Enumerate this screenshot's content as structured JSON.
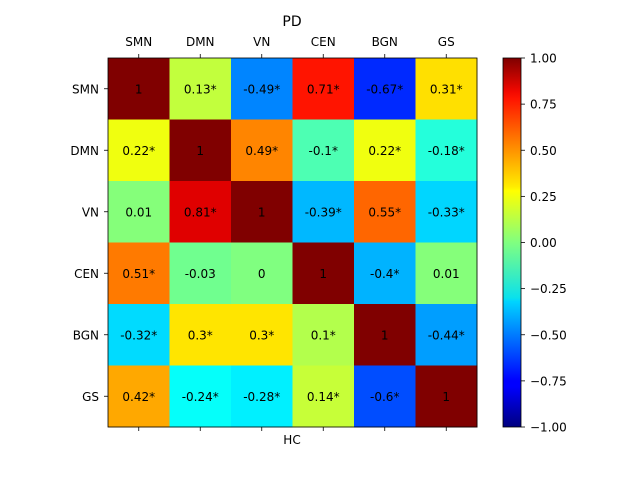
{
  "chart_data": {
    "type": "heatmap",
    "title": "PD",
    "xlabel": "HC",
    "x_categories": [
      "SMN",
      "DMN",
      "VN",
      "CEN",
      "BGN",
      "GS"
    ],
    "y_categories": [
      "SMN",
      "DMN",
      "VN",
      "CEN",
      "BGN",
      "GS"
    ],
    "values": [
      [
        1,
        0.13,
        -0.49,
        0.71,
        -0.67,
        0.31
      ],
      [
        0.22,
        1,
        0.49,
        -0.1,
        0.22,
        -0.18
      ],
      [
        0.01,
        0.81,
        1,
        -0.39,
        0.55,
        -0.33
      ],
      [
        0.51,
        -0.03,
        0,
        1,
        -0.4,
        0.01
      ],
      [
        -0.32,
        0.3,
        0.3,
        0.1,
        1,
        -0.44
      ],
      [
        0.42,
        -0.24,
        -0.28,
        0.14,
        -0.6,
        1
      ]
    ],
    "labels": [
      [
        "1",
        "0.13*",
        "-0.49*",
        "0.71*",
        "-0.67*",
        "0.31*"
      ],
      [
        "0.22*",
        "1",
        "0.49*",
        "-0.1*",
        "0.22*",
        "-0.18*"
      ],
      [
        "0.01",
        "0.81*",
        "1",
        "-0.39*",
        "0.55*",
        "-0.33*"
      ],
      [
        "0.51*",
        "-0.03",
        "0",
        "1",
        "-0.4*",
        "0.01"
      ],
      [
        "-0.32*",
        "0.3*",
        "0.3*",
        "0.1*",
        "1",
        "-0.44*"
      ],
      [
        "0.42*",
        "-0.24*",
        "-0.28*",
        "0.14*",
        "-0.6*",
        "1"
      ]
    ],
    "colormap": "jet",
    "vmin": -1,
    "vmax": 1,
    "colorbar_ticks": [
      1.0,
      0.75,
      0.5,
      0.25,
      0.0,
      -0.25,
      -0.5,
      -0.75,
      -1.0
    ],
    "colorbar_tick_labels": [
      "1.00",
      "0.75",
      "0.50",
      "0.25",
      "0.00",
      "−0.25",
      "−0.50",
      "−0.75",
      "−1.00"
    ]
  }
}
